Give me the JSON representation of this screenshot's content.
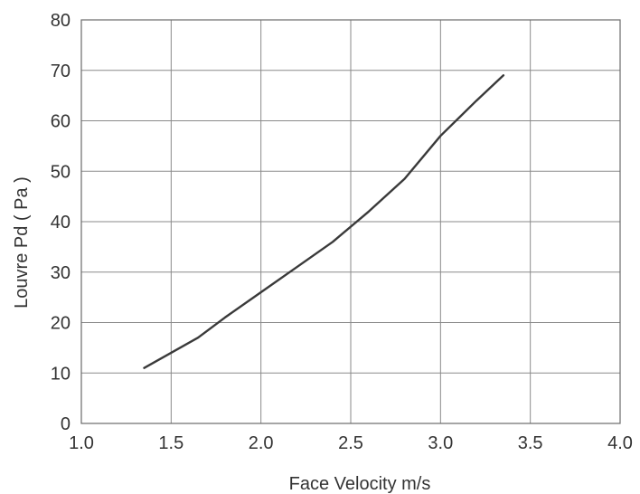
{
  "chart_data": {
    "type": "line",
    "title": "",
    "xlabel": "Face Velocity m/s",
    "ylabel": "Louvre Pd ( Pa )",
    "xlim": [
      1.0,
      4.0
    ],
    "ylim": [
      0,
      80
    ],
    "x_ticks": [
      "1.0",
      "1.5",
      "2.0",
      "2.5",
      "3.0",
      "3.5",
      "4.0"
    ],
    "y_ticks": [
      "0",
      "10",
      "20",
      "30",
      "40",
      "50",
      "60",
      "70",
      "80"
    ],
    "grid": true,
    "legend": "none",
    "series": [
      {
        "color": "#3a3a3a",
        "x": [
          1.35,
          1.5,
          1.65,
          1.8,
          2.0,
          2.2,
          2.4,
          2.6,
          2.8,
          3.0,
          3.2,
          3.35
        ],
        "y": [
          11,
          14,
          17,
          21,
          26,
          31,
          36,
          42,
          48.5,
          57,
          64,
          69
        ]
      }
    ]
  }
}
